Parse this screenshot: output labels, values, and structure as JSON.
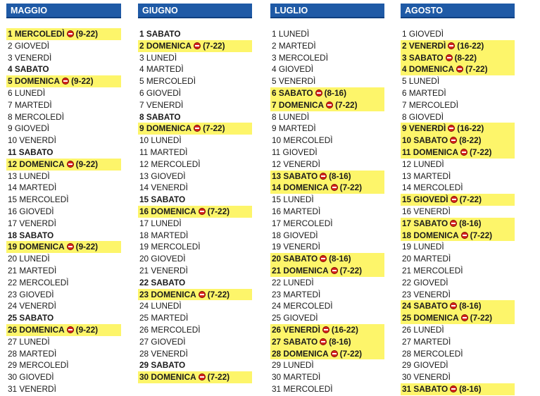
{
  "months": [
    {
      "name": "MAGGIO",
      "days": [
        {
          "text": "1 MERCOLEDÌ",
          "bold": true,
          "hl": true,
          "icon": true,
          "hours": "(9-22)"
        },
        {
          "text": "2 GIOVEDÌ"
        },
        {
          "text": "3 VENERDÌ"
        },
        {
          "text": "4 SABATO",
          "bold": true
        },
        {
          "text": "5 DOMENICA",
          "bold": true,
          "hl": true,
          "icon": true,
          "hours": "(9-22)"
        },
        {
          "text": "6 LUNEDÌ"
        },
        {
          "text": "7 MARTEDÌ"
        },
        {
          "text": "8 MERCOLEDÌ"
        },
        {
          "text": "9 GIOVEDÌ"
        },
        {
          "text": "10 VENERDÌ"
        },
        {
          "text": "11 SABATO",
          "bold": true
        },
        {
          "text": "12 DOMENICA",
          "bold": true,
          "hl": true,
          "icon": true,
          "hours": "(9-22)"
        },
        {
          "text": "13 LUNEDÌ"
        },
        {
          "text": "14 MARTEDÌ"
        },
        {
          "text": "15 MERCOLEDÌ"
        },
        {
          "text": "16 GIOVEDÌ"
        },
        {
          "text": "17 VENERDÌ"
        },
        {
          "text": "18 SABATO",
          "bold": true
        },
        {
          "text": "19 DOMENICA",
          "bold": true,
          "hl": true,
          "icon": true,
          "hours": "(9-22)"
        },
        {
          "text": "20 LUNEDÌ"
        },
        {
          "text": "21 MARTEDÌ"
        },
        {
          "text": "22 MERCOLEDÌ"
        },
        {
          "text": "23 GIOVEDÌ"
        },
        {
          "text": "24 VENERDÌ"
        },
        {
          "text": "25 SABATO",
          "bold": true
        },
        {
          "text": "26 DOMENICA",
          "bold": true,
          "hl": true,
          "icon": true,
          "hours": "(9-22)"
        },
        {
          "text": "27 LUNEDÌ"
        },
        {
          "text": "28 MARTEDÌ"
        },
        {
          "text": "29 MERCOLEDÌ"
        },
        {
          "text": "30 GIOVEDÌ"
        },
        {
          "text": "31 VENERDÌ"
        }
      ]
    },
    {
      "name": "GIUGNO",
      "days": [
        {
          "text": "1 SABATO",
          "bold": true
        },
        {
          "text": "2 DOMENICA",
          "bold": true,
          "hl": true,
          "icon": true,
          "hours": "(7-22)"
        },
        {
          "text": "3 LUNEDÌ"
        },
        {
          "text": "4 MARTEDÌ"
        },
        {
          "text": "5 MERCOLEDÌ"
        },
        {
          "text": "6 GIOVEDÌ"
        },
        {
          "text": "7 VENERDÌ"
        },
        {
          "text": "8 SABATO",
          "bold": true
        },
        {
          "text": "9 DOMENICA",
          "bold": true,
          "hl": true,
          "icon": true,
          "hours": "(7-22)"
        },
        {
          "text": "10 LUNEDÌ"
        },
        {
          "text": "11 MARTEDÌ"
        },
        {
          "text": "12 MERCOLEDÌ"
        },
        {
          "text": "13 GIOVEDÌ"
        },
        {
          "text": "14 VENERDÌ"
        },
        {
          "text": "15 SABATO",
          "bold": true
        },
        {
          "text": "16 DOMENICA",
          "bold": true,
          "hl": true,
          "icon": true,
          "hours": "(7-22)"
        },
        {
          "text": "17 LUNEDÌ"
        },
        {
          "text": "18 MARTEDÌ"
        },
        {
          "text": "19 MERCOLEDÌ"
        },
        {
          "text": "20 GIOVEDÌ"
        },
        {
          "text": "21 VENERDÌ"
        },
        {
          "text": "22 SABATO",
          "bold": true
        },
        {
          "text": "23 DOMENICA",
          "bold": true,
          "hl": true,
          "icon": true,
          "hours": "(7-22)"
        },
        {
          "text": "24 LUNEDÌ"
        },
        {
          "text": "25 MARTEDÌ"
        },
        {
          "text": "26 MERCOLEDÌ"
        },
        {
          "text": "27 GIOVEDÌ"
        },
        {
          "text": "28 VENERDÌ"
        },
        {
          "text": "29 SABATO",
          "bold": true
        },
        {
          "text": "30 DOMENICA",
          "bold": true,
          "hl": true,
          "icon": true,
          "hours": "(7-22)"
        }
      ]
    },
    {
      "name": "LUGLIO",
      "days": [
        {
          "text": "1 LUNEDÌ"
        },
        {
          "text": "2 MARTEDÌ"
        },
        {
          "text": "3 MERCOLEDÌ"
        },
        {
          "text": "4 GIOVEDÌ"
        },
        {
          "text": "5 VENERDÌ"
        },
        {
          "text": "6 SABATO",
          "bold": true,
          "hl": true,
          "icon": true,
          "hours": "(8-16)"
        },
        {
          "text": "7 DOMENICA",
          "bold": true,
          "hl": true,
          "icon": true,
          "hours": "(7-22)"
        },
        {
          "text": "8 LUNEDÌ"
        },
        {
          "text": "9 MARTEDÌ"
        },
        {
          "text": "10 MERCOLEDÌ"
        },
        {
          "text": "11 GIOVEDÌ"
        },
        {
          "text": "12 VENERDÌ"
        },
        {
          "text": "13 SABATO",
          "bold": true,
          "hl": true,
          "icon": true,
          "hours": "(8-16)"
        },
        {
          "text": "14 DOMENICA",
          "bold": true,
          "hl": true,
          "icon": true,
          "hours": "(7-22)"
        },
        {
          "text": "15 LUNEDÌ"
        },
        {
          "text": "16 MARTEDÌ"
        },
        {
          "text": "17 MERCOLEDÌ"
        },
        {
          "text": "18 GIOVEDÌ"
        },
        {
          "text": "19 VENERDÌ"
        },
        {
          "text": "20 SABATO",
          "bold": true,
          "hl": true,
          "icon": true,
          "hours": "(8-16)"
        },
        {
          "text": "21 DOMENICA",
          "bold": true,
          "hl": true,
          "icon": true,
          "hours": "(7-22)"
        },
        {
          "text": "22 LUNEDÌ"
        },
        {
          "text": "23 MARTEDÌ"
        },
        {
          "text": "24 MERCOLEDÌ"
        },
        {
          "text": "25 GIOVEDÌ"
        },
        {
          "text": "26 VENERDÌ",
          "bold": true,
          "hl": true,
          "icon": true,
          "hours": "(16-22)"
        },
        {
          "text": "27 SABATO",
          "bold": true,
          "hl": true,
          "icon": true,
          "hours": "(8-16)"
        },
        {
          "text": "28 DOMENICA",
          "bold": true,
          "hl": true,
          "icon": true,
          "hours": "(7-22)"
        },
        {
          "text": "29 LUNEDÌ"
        },
        {
          "text": "30 MARTEDÌ"
        },
        {
          "text": "31 MERCOLEDÌ"
        }
      ]
    },
    {
      "name": "AGOSTO",
      "days": [
        {
          "text": "1 GIOVEDÌ"
        },
        {
          "text": "2 VENERDÌ",
          "bold": true,
          "hl": true,
          "icon": true,
          "hours": "(16-22)"
        },
        {
          "text": "3 SABATO",
          "bold": true,
          "hl": true,
          "icon": true,
          "hours": "(8-22)"
        },
        {
          "text": "4 DOMENICA",
          "bold": true,
          "hl": true,
          "icon": true,
          "hours": "(7-22)"
        },
        {
          "text": "5 LUNEDÌ"
        },
        {
          "text": "6 MARTEDÌ"
        },
        {
          "text": "7 MERCOLEDÌ"
        },
        {
          "text": "8 GIOVEDÌ"
        },
        {
          "text": "9 VENERDÌ",
          "bold": true,
          "hl": true,
          "icon": true,
          "hours": "(16-22)"
        },
        {
          "text": "10 SABATO",
          "bold": true,
          "hl": true,
          "icon": true,
          "hours": "(8-22)"
        },
        {
          "text": "11 DOMENICA",
          "bold": true,
          "hl": true,
          "icon": true,
          "hours": "(7-22)"
        },
        {
          "text": "12 LUNEDÌ"
        },
        {
          "text": "13 MARTEDÌ"
        },
        {
          "text": "14 MERCOLEDÌ"
        },
        {
          "text": "15 GIOVEDÌ",
          "bold": true,
          "hl": true,
          "icon": true,
          "hours": "(7-22)"
        },
        {
          "text": "16 VENERDÌ"
        },
        {
          "text": "17 SABATO",
          "bold": true,
          "hl": true,
          "icon": true,
          "hours": "(8-16)"
        },
        {
          "text": "18 DOMENICA",
          "bold": true,
          "hl": true,
          "icon": true,
          "hours": "(7-22)"
        },
        {
          "text": "19 LUNEDÌ"
        },
        {
          "text": "20 MARTEDÌ"
        },
        {
          "text": "21 MERCOLEDÌ"
        },
        {
          "text": "22 GIOVEDÌ"
        },
        {
          "text": "23 VENERDÌ"
        },
        {
          "text": "24 SABATO",
          "bold": true,
          "hl": true,
          "icon": true,
          "hours": "(8-16)"
        },
        {
          "text": "25 DOMENICA",
          "bold": true,
          "hl": true,
          "icon": true,
          "hours": "(7-22)"
        },
        {
          "text": "26 LUNEDÌ"
        },
        {
          "text": "27 MARTEDÌ"
        },
        {
          "text": "28 MERCOLEDÌ"
        },
        {
          "text": "29 GIOVEDÌ"
        },
        {
          "text": "30 VENERDÌ"
        },
        {
          "text": "31 SABATO",
          "bold": true,
          "hl": true,
          "icon": true,
          "hours": "(8-16)"
        }
      ]
    }
  ],
  "icon_name": "no-entry-icon",
  "colors": {
    "header_bg": "#1f5aa6",
    "highlight": "#fdf56a",
    "icon": "#d9241c"
  }
}
